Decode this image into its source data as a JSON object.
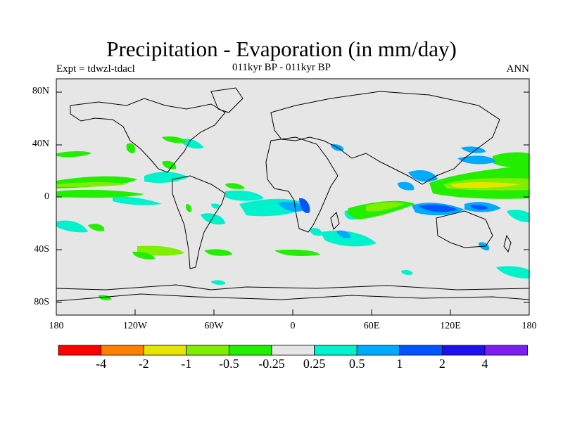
{
  "title": "Precipitation - Evaporation (in mm/day)",
  "experiment": "Expt = tdwzl-tdacl",
  "subtitle": "011kyr BP - 011kyr BP",
  "period": "ANN",
  "lat_labels": [
    "80N",
    "40N",
    "0",
    "40S",
    "80S"
  ],
  "lon_labels": [
    "180",
    "120W",
    "60W",
    "0",
    "60E",
    "120E",
    "180"
  ],
  "colorbar": {
    "colors": [
      "#ff0000",
      "#ff7f00",
      "#e5e500",
      "#80ee00",
      "#22ee00",
      "#e6e6e6",
      "#00f2cc",
      "#00aaff",
      "#0055ff",
      "#1f10f0",
      "#7d1ff0"
    ],
    "labels": [
      "-4",
      "-2",
      "-1",
      "-0.5",
      "-0.25",
      "0.25",
      "0.5",
      "1",
      "2",
      "4"
    ]
  }
}
